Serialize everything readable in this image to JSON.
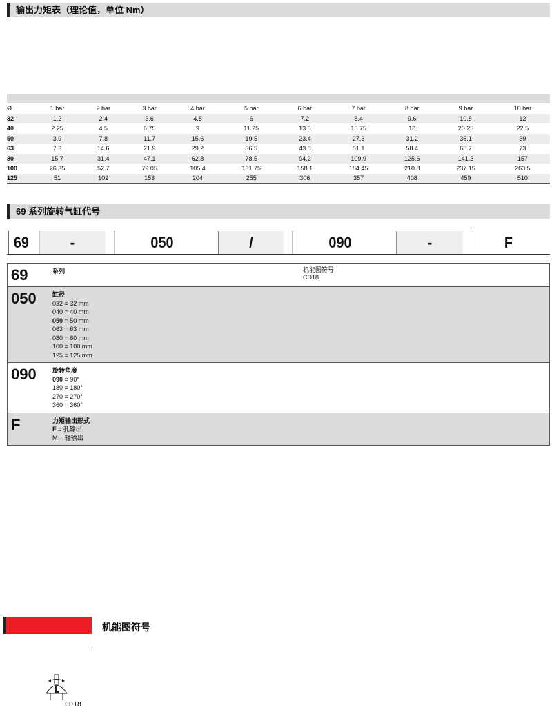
{
  "torque_section": {
    "title": "输出力矩表（理论值，单位 Nm）"
  },
  "torque_table": {
    "headers": [
      "Ø",
      "1 bar",
      "2 bar",
      "3 bar",
      "4 bar",
      "5 bar",
      "6 bar",
      "7 bar",
      "8 bar",
      "9 bar",
      "10 bar"
    ],
    "rows": [
      [
        "32",
        "1.2",
        "2.4",
        "3.6",
        "4.8",
        "6",
        "7.2",
        "8.4",
        "9.6",
        "10.8",
        "12"
      ],
      [
        "40",
        "2.25",
        "4.5",
        "6.75",
        "9",
        "11.25",
        "13.5",
        "15.75",
        "18",
        "20.25",
        "22.5"
      ],
      [
        "50",
        "3.9",
        "7.8",
        "11.7",
        "15.6",
        "19.5",
        "23.4",
        "27.3",
        "31.2",
        "35.1",
        "39"
      ],
      [
        "63",
        "7.3",
        "14.6",
        "21.9",
        "29.2",
        "36.5",
        "43.8",
        "51.1",
        "58.4",
        "65.7",
        "73"
      ],
      [
        "80",
        "15.7",
        "31.4",
        "47.1",
        "62.8",
        "78.5",
        "94.2",
        "109.9",
        "125.6",
        "141.3",
        "157"
      ],
      [
        "100",
        "26.35",
        "52.7",
        "79.05",
        "105.4",
        "131.75",
        "158.1",
        "184.45",
        "210.8",
        "237.15",
        "263.5"
      ],
      [
        "125",
        "51",
        "102",
        "153",
        "204",
        "255",
        "306",
        "357",
        "408",
        "459",
        "510"
      ]
    ]
  },
  "code_section": {
    "title": "69 系列旋转气缸代号"
  },
  "code_parts": [
    "69",
    "-",
    "050",
    "/",
    "090",
    "-",
    "F"
  ],
  "definitions": {
    "series": {
      "code": "69",
      "title": "系列",
      "right_title": "机能图符号",
      "right_value": "CD18"
    },
    "bore": {
      "code": "050",
      "title": "缸径",
      "items": [
        [
          "032",
          " = 32 mm"
        ],
        [
          "040",
          " = 40 mm"
        ],
        [
          "050",
          " = 50 mm"
        ],
        [
          "063",
          " = 63 mm"
        ],
        [
          "080",
          " = 80 mm"
        ],
        [
          "100",
          " = 100 mm"
        ],
        [
          "125",
          " = 125 mm"
        ]
      ]
    },
    "angle": {
      "code": "090",
      "title": "旋转角度",
      "items": [
        [
          "090",
          " = 90°"
        ],
        [
          "180",
          " = 180°"
        ],
        [
          "270",
          " = 270°"
        ],
        [
          "360",
          " = 360°"
        ]
      ]
    },
    "output": {
      "code": "F",
      "title": "力矩输出形式",
      "items": [
        [
          "F",
          " = 孔输出"
        ],
        [
          "M",
          " = 轴输出"
        ]
      ]
    }
  },
  "symbol_section": {
    "title": "机能图符号",
    "symbol_label": "CD18",
    "accent": "#ee1c25"
  }
}
